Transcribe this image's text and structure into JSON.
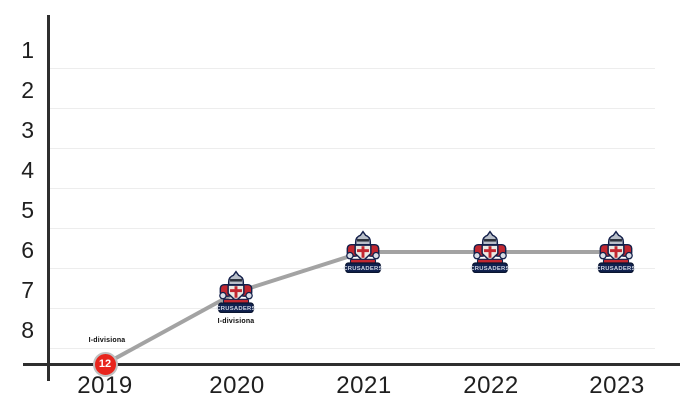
{
  "chart_data": {
    "type": "line",
    "title": "",
    "x": [
      "2019",
      "2020",
      "2021",
      "2022",
      "2023"
    ],
    "series": [
      {
        "name": "Crusaders",
        "values": [
          12,
          7,
          6,
          6,
          6
        ],
        "point_markers": [
          "red-badge-12",
          "crusaders-logo",
          "crusaders-logo",
          "crusaders-logo",
          "crusaders-logo"
        ]
      }
    ],
    "xlabel": "",
    "ylabel": "",
    "y_axis": {
      "ticks": [
        1,
        2,
        3,
        4,
        5,
        6,
        7,
        8
      ],
      "inverted": true,
      "note": "2019 value 12 is clamped at the baseline with a numeric badge"
    },
    "annotations": [
      {
        "x": "2019",
        "text": "I-divisiona",
        "position": "above-point"
      },
      {
        "x": "2020",
        "text": "I-divisiona",
        "position": "below-point"
      }
    ],
    "legend": "none",
    "grid": "faint-horizontal",
    "line_color": "#a3a3a3"
  },
  "axes": {
    "y_ticks": [
      "1",
      "2",
      "3",
      "4",
      "5",
      "6",
      "7",
      "8"
    ],
    "x_ticks": [
      "2019",
      "2020",
      "2021",
      "2022",
      "2023"
    ]
  },
  "points": {
    "badge_2019": "12",
    "label_2019": "I-divisiona",
    "label_2020": "I-divisiona"
  },
  "logo": {
    "banner_text": "CRUSADERS"
  },
  "colors": {
    "axis": "#2e2e2e",
    "grid": "#ededed",
    "line": "#a3a3a3",
    "badge_red": "#e8251d",
    "badge_ring": "#c0c0c0",
    "logo_navy": "#10214f",
    "logo_red": "#c22730",
    "logo_silver": "#bfc5d0"
  }
}
